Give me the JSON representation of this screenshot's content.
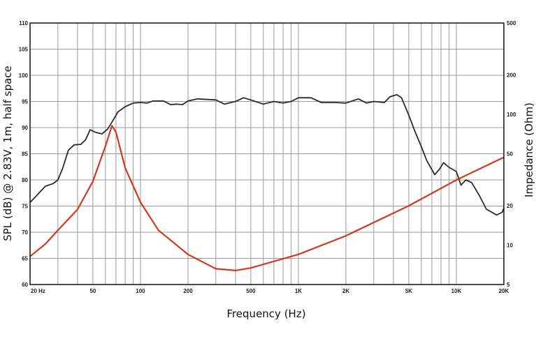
{
  "chart_data": {
    "type": "line",
    "title": "",
    "xlabel": "Frequency (Hz)",
    "ylabel": "SPL (dB) @ 2.83V, 1m, half space",
    "y2label": "Impedance (Ohm)",
    "x_scale": "log",
    "xlim": [
      20,
      20000
    ],
    "ylim": [
      60,
      110
    ],
    "y2_scale": "log",
    "y2lim": [
      5,
      500
    ],
    "grid": true,
    "x_ticks": [
      {
        "value": 20,
        "label": "20  Hz"
      },
      {
        "value": 50,
        "label": "50"
      },
      {
        "value": 100,
        "label": "100"
      },
      {
        "value": 200,
        "label": "200"
      },
      {
        "value": 500,
        "label": "500"
      },
      {
        "value": 1000,
        "label": "1K"
      },
      {
        "value": 2000,
        "label": "2K"
      },
      {
        "value": 5000,
        "label": "5K"
      },
      {
        "value": 10000,
        "label": "10K"
      },
      {
        "value": 20000,
        "label": "20K"
      }
    ],
    "y_ticks": [
      "60",
      "65",
      "70",
      "75",
      "80",
      "85",
      "90",
      "95",
      "100",
      "105",
      "110"
    ],
    "y2_ticks": [
      {
        "value": 5,
        "label": "5"
      },
      {
        "value": 10,
        "label": "10"
      },
      {
        "value": 20,
        "label": "20"
      },
      {
        "value": 50,
        "label": "50"
      },
      {
        "value": 100,
        "label": "100"
      },
      {
        "value": 200,
        "label": "200"
      },
      {
        "value": 500,
        "label": "500"
      }
    ],
    "series": [
      {
        "axis": "left",
        "color": "#2b2b2b",
        "x": [
          20,
          22,
          25,
          28,
          30,
          32,
          35,
          38,
          42,
          45,
          48,
          52,
          57,
          62,
          68,
          72,
          80,
          90,
          100,
          110,
          120,
          140,
          155,
          170,
          185,
          200,
          230,
          300,
          340,
          400,
          450,
          500,
          600,
          700,
          800,
          900,
          1000,
          1200,
          1400,
          1700,
          2000,
          2400,
          2700,
          3000,
          3500,
          3800,
          4200,
          4500,
          5000,
          5500,
          6000,
          6500,
          7300,
          7800,
          8300,
          9000,
          10000,
          10700,
          11500,
          12500,
          14000,
          15500,
          18000,
          19500,
          20000
        ],
        "y": [
          75.7,
          77,
          78.8,
          79.3,
          80,
          82,
          85.7,
          86.7,
          86.8,
          87.7,
          89.6,
          89.1,
          88.8,
          89.7,
          91.7,
          93,
          94,
          94.7,
          94.8,
          94.7,
          95.1,
          95.1,
          94.4,
          94.5,
          94.4,
          95.1,
          95.5,
          95.3,
          94.5,
          95,
          95.7,
          95.3,
          94.5,
          95,
          94.7,
          95,
          95.7,
          95.7,
          94.8,
          94.8,
          94.7,
          95.5,
          94.7,
          95,
          94.8,
          95.9,
          96.3,
          95.7,
          92.4,
          89.1,
          86.4,
          83.7,
          81,
          82,
          83.3,
          82.4,
          81.6,
          79,
          80,
          79.5,
          77,
          74.4,
          73.3,
          73.8,
          74.6
        ]
      },
      {
        "axis": "right",
        "color": "#d03a22",
        "x": [
          20,
          25,
          30,
          40,
          50,
          60,
          66,
          70,
          80,
          100,
          130,
          200,
          300,
          400,
          500,
          1000,
          2000,
          5000,
          10000,
          20000
        ],
        "y": [
          8.2,
          10.2,
          13,
          18.8,
          30.8,
          57,
          82,
          73,
          39,
          21.3,
          13,
          8.5,
          6.6,
          6.4,
          6.7,
          8.5,
          11.8,
          20,
          31.5,
          47
        ]
      }
    ]
  }
}
